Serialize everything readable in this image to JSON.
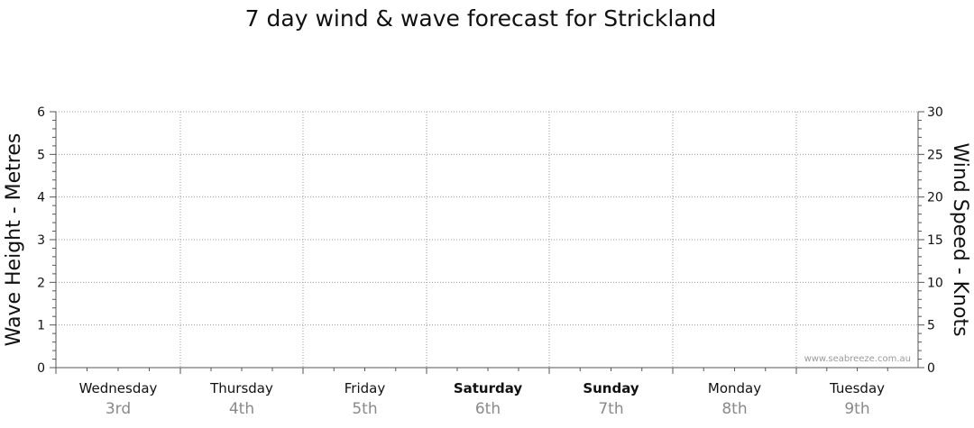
{
  "chart_data": {
    "type": "line",
    "title": "7 day wind & wave forecast for Strickland",
    "ylabel_left": "Wave Height - Metres",
    "ylabel_right": "Wind Speed - Knots",
    "ylim_left": [
      0,
      6
    ],
    "ylim_right": [
      0,
      30
    ],
    "yticks_left": [
      "0",
      "1",
      "2",
      "3",
      "4",
      "5",
      "6"
    ],
    "yticks_right": [
      "0",
      "5",
      "10",
      "15",
      "20",
      "25",
      "30"
    ],
    "grid": true,
    "days": [
      {
        "name": "Wednesday",
        "date": "3rd",
        "bold": false
      },
      {
        "name": "Thursday",
        "date": "4th",
        "bold": false
      },
      {
        "name": "Friday",
        "date": "5th",
        "bold": false
      },
      {
        "name": "Saturday",
        "date": "6th",
        "bold": true
      },
      {
        "name": "Sunday",
        "date": "7th",
        "bold": true
      },
      {
        "name": "Monday",
        "date": "8th",
        "bold": false
      },
      {
        "name": "Tuesday",
        "date": "9th",
        "bold": false
      }
    ],
    "series": [],
    "watermark": "www.seabreeze.com.au"
  },
  "colors": {
    "grid": "#9a9a9a",
    "axis": "#555555",
    "text": "#111111",
    "date_text": "#8a8a8a"
  }
}
